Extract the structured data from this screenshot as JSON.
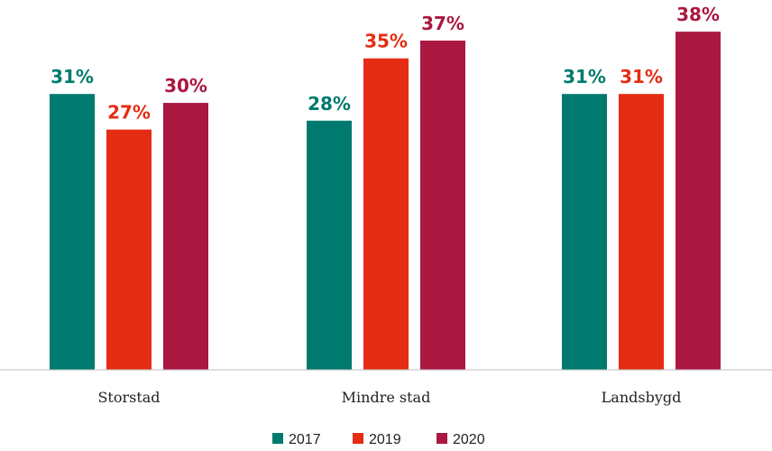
{
  "chart_data": {
    "type": "bar",
    "title": "",
    "xlabel": "",
    "ylabel": "",
    "ylim": [
      0,
      40
    ],
    "grid": false,
    "legend_position": "bottom",
    "categories": [
      "Storstad",
      "Mindre stad",
      "Landsbygd"
    ],
    "series": [
      {
        "name": "2017",
        "color": "#007A6E",
        "values": [
          31,
          28,
          31
        ],
        "labels": [
          "31%",
          "28%",
          "31%"
        ]
      },
      {
        "name": "2019",
        "color": "#E42D13",
        "values": [
          27,
          35,
          31
        ],
        "labels": [
          "27%",
          "35%",
          "31%"
        ]
      },
      {
        "name": "2020",
        "color": "#AA1841",
        "values": [
          30,
          37,
          38
        ],
        "labels": [
          "30%",
          "37%",
          "38%"
        ]
      }
    ]
  }
}
